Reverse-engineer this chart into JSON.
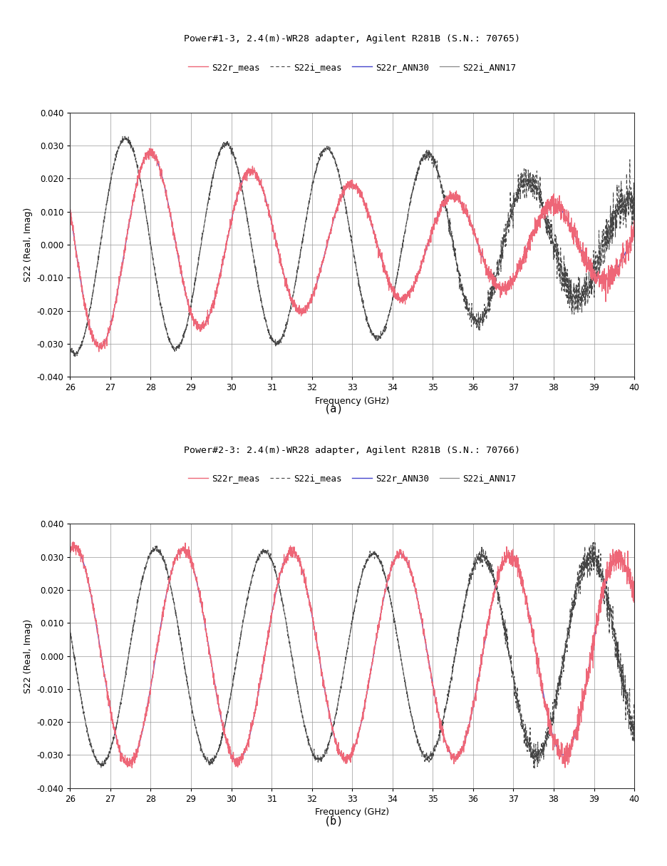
{
  "title1": "Power#1-3, 2.4(m)-WR28 adapter, Agilent R281B (S.N.: 70765)",
  "title2": "Power#2-3: 2.4(m)-WR28 adapter, Agilent R281B (S.N.: 70766)",
  "label_a": "(a)",
  "label_b": "(b)",
  "xlabel": "Frequency (GHz)",
  "ylabel": "S22 (Real, Imag)",
  "xmin": 26,
  "xmax": 40,
  "ymin": -0.04,
  "ymax": 0.04,
  "yticks": [
    -0.04,
    -0.03,
    -0.02,
    -0.01,
    0.0,
    0.01,
    0.02,
    0.03,
    0.04
  ],
  "xticks": [
    26,
    27,
    28,
    29,
    30,
    31,
    32,
    33,
    34,
    35,
    36,
    37,
    38,
    39,
    40
  ],
  "legend_labels": [
    "S22r_meas",
    "S22i_meas",
    "S22r_ANN30",
    "S22i_ANN17"
  ],
  "color_S22r_meas": "#EE6677",
  "color_S22i_meas": "#444444",
  "color_S22r_ANN30": "#4444CC",
  "color_S22i_ANN17": "#888888",
  "background_color": "#ffffff",
  "grid_color": "#999999",
  "title_fontsize": 9.5,
  "label_fontsize": 9,
  "tick_fontsize": 8.5,
  "legend_fontsize": 9
}
